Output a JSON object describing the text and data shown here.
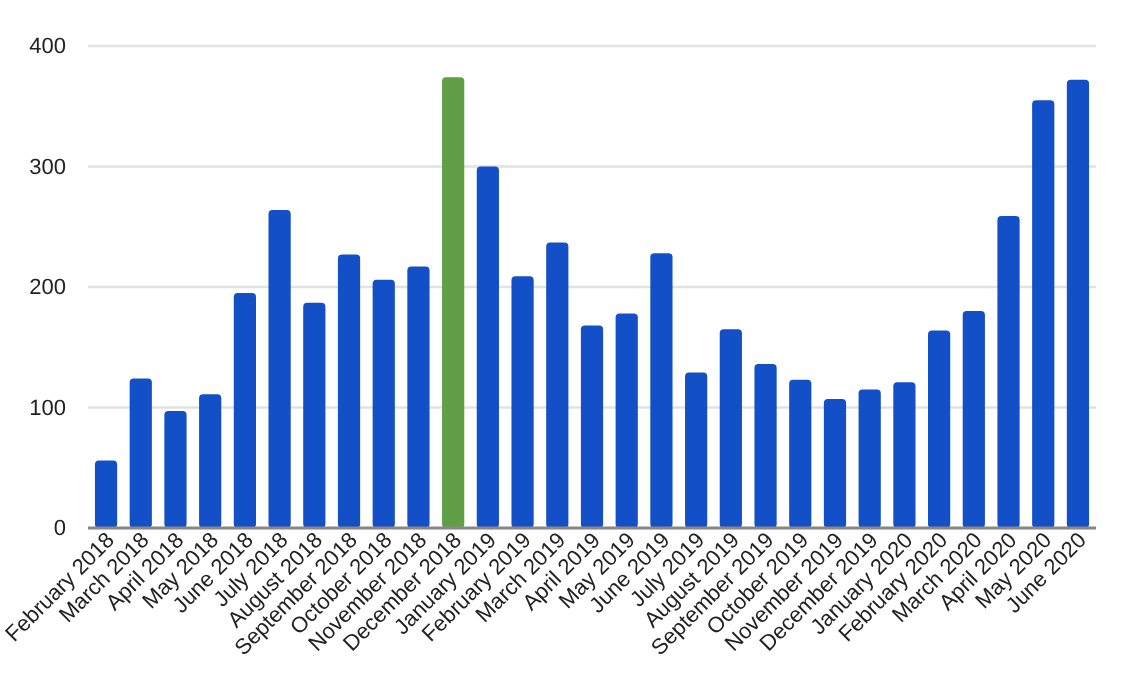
{
  "chart_data": {
    "type": "bar",
    "categories": [
      "February 2018",
      "March 2018",
      "April 2018",
      "May 2018",
      "June 2018",
      "July 2018",
      "August 2018",
      "September 2018",
      "October 2018",
      "November 2018",
      "December 2018",
      "January 2019",
      "February 2019",
      "March 2019",
      "April 2019",
      "May 2019",
      "June 2019",
      "July 2019",
      "August 2019",
      "September 2019",
      "October 2019",
      "November 2019",
      "December 2019",
      "January 2020",
      "February 2020",
      "March 2020",
      "April 2020",
      "May 2020",
      "June 2020"
    ],
    "values": [
      56,
      124,
      97,
      111,
      195,
      264,
      187,
      227,
      206,
      217,
      374,
      300,
      209,
      237,
      168,
      178,
      228,
      129,
      165,
      136,
      123,
      107,
      115,
      121,
      164,
      180,
      259,
      355,
      372
    ],
    "colors": [
      "#134fc6",
      "#134fc6",
      "#134fc6",
      "#134fc6",
      "#134fc6",
      "#134fc6",
      "#134fc6",
      "#134fc6",
      "#134fc6",
      "#134fc6",
      "#609f46",
      "#134fc6",
      "#134fc6",
      "#134fc6",
      "#134fc6",
      "#134fc6",
      "#134fc6",
      "#134fc6",
      "#134fc6",
      "#134fc6",
      "#134fc6",
      "#134fc6",
      "#134fc6",
      "#134fc6",
      "#134fc6",
      "#134fc6",
      "#134fc6",
      "#134fc6",
      "#134fc6"
    ],
    "ylim": [
      0,
      400
    ],
    "yticks": [
      0,
      100,
      200,
      300,
      400
    ],
    "grid": "y"
  }
}
